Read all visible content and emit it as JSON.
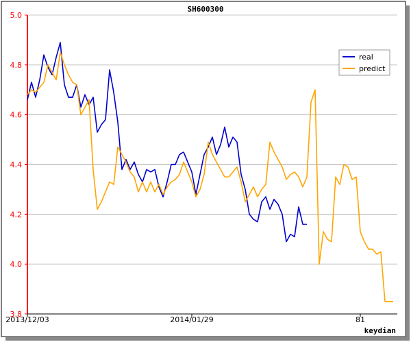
{
  "chart_data": {
    "type": "line",
    "title": "SH600300",
    "xlabel": "keydian",
    "ylabel": "",
    "ylim": [
      3.8,
      5.0
    ],
    "yticks": [
      "3.8",
      "4.0",
      "4.2",
      "4.4",
      "4.6",
      "4.8",
      "5.0"
    ],
    "xlim": [
      0,
      90
    ],
    "xticks": [
      {
        "x": 0,
        "label": "2013/12/03"
      },
      {
        "x": 40,
        "label": "2014/01/29"
      },
      {
        "x": 81,
        "label": "81"
      }
    ],
    "grid": "horizontal",
    "legend_position": "top-right",
    "colors": {
      "real": "#0000cc",
      "predict": "#ffa500",
      "axis": "#ff0000",
      "grid": "#c8c8c8"
    },
    "series": [
      {
        "name": "real",
        "color": "#0000cc",
        "x": [
          0,
          1,
          2,
          3,
          4,
          5,
          6,
          7,
          8,
          9,
          10,
          11,
          12,
          13,
          14,
          15,
          16,
          17,
          18,
          19,
          20,
          21,
          22,
          23,
          24,
          25,
          26,
          27,
          28,
          29,
          30,
          31,
          32,
          33,
          34,
          35,
          36,
          37,
          38,
          39,
          40,
          41,
          42,
          43,
          44,
          45,
          46,
          47,
          48,
          49,
          50,
          51,
          52,
          53,
          54,
          55,
          56,
          57,
          58,
          59,
          60,
          61,
          62,
          63,
          64,
          65,
          66,
          67,
          68
        ],
        "values": [
          4.66,
          4.73,
          4.67,
          4.74,
          4.84,
          4.79,
          4.76,
          4.83,
          4.89,
          4.72,
          4.67,
          4.67,
          4.72,
          4.63,
          4.68,
          4.64,
          4.67,
          4.53,
          4.56,
          4.58,
          4.78,
          4.69,
          4.57,
          4.38,
          4.42,
          4.38,
          4.41,
          4.36,
          4.33,
          4.38,
          4.37,
          4.38,
          4.31,
          4.27,
          4.33,
          4.4,
          4.4,
          4.44,
          4.45,
          4.41,
          4.37,
          4.28,
          4.36,
          4.44,
          4.47,
          4.51,
          4.44,
          4.48,
          4.55,
          4.47,
          4.51,
          4.49,
          4.36,
          4.3,
          4.2,
          4.18,
          4.17,
          4.25,
          4.27,
          4.22,
          4.26,
          4.24,
          4.2,
          4.09,
          4.12,
          4.11,
          4.23,
          4.16,
          4.16
        ]
      },
      {
        "name": "predict",
        "color": "#ffa500",
        "x": [
          0,
          1,
          2,
          3,
          4,
          5,
          6,
          7,
          8,
          9,
          10,
          11,
          12,
          13,
          14,
          15,
          16,
          17,
          18,
          19,
          20,
          21,
          22,
          23,
          24,
          25,
          26,
          27,
          28,
          29,
          30,
          31,
          32,
          33,
          34,
          35,
          36,
          37,
          38,
          39,
          40,
          41,
          42,
          43,
          44,
          45,
          46,
          47,
          48,
          49,
          50,
          51,
          52,
          53,
          54,
          55,
          56,
          57,
          58,
          59,
          60,
          61,
          62,
          63,
          64,
          65,
          66,
          67,
          68,
          69,
          70,
          71,
          72,
          73,
          74,
          75,
          76,
          77,
          78,
          79,
          80,
          81,
          82,
          83,
          84,
          85,
          86,
          87,
          88,
          89
        ],
        "values": [
          4.68,
          4.7,
          4.69,
          4.71,
          4.73,
          4.8,
          4.77,
          4.74,
          4.85,
          4.8,
          4.76,
          4.73,
          4.72,
          4.6,
          4.63,
          4.66,
          4.38,
          4.22,
          4.25,
          4.29,
          4.33,
          4.32,
          4.47,
          4.44,
          4.41,
          4.37,
          4.35,
          4.29,
          4.33,
          4.29,
          4.33,
          4.29,
          4.32,
          4.28,
          4.31,
          4.33,
          4.34,
          4.36,
          4.41,
          4.37,
          4.33,
          4.27,
          4.3,
          4.36,
          4.49,
          4.44,
          4.41,
          4.38,
          4.35,
          4.35,
          4.37,
          4.39,
          4.33,
          4.25,
          4.28,
          4.31,
          4.27,
          4.3,
          4.32,
          4.49,
          4.45,
          4.42,
          4.39,
          4.34,
          4.36,
          4.37,
          4.35,
          4.31,
          4.35,
          4.65,
          4.7,
          4.0,
          4.13,
          4.1,
          4.09,
          4.35,
          4.32,
          4.4,
          4.39,
          4.34,
          4.35,
          4.13,
          4.09,
          4.06,
          4.06,
          4.04,
          4.05,
          3.85,
          3.85,
          3.85
        ]
      }
    ]
  }
}
